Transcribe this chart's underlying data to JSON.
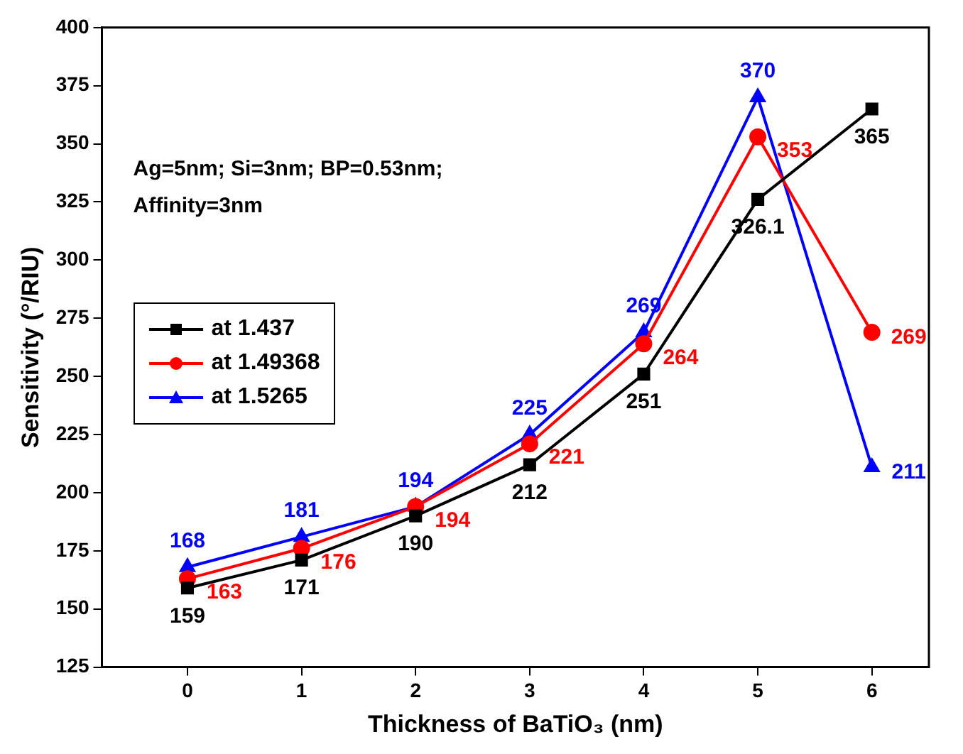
{
  "chart_data": {
    "type": "line",
    "xlabel": "Thickness of BaTiO₃ (nm)",
    "ylabel": "Sensitivity (°/RIU)",
    "x": [
      0,
      1,
      2,
      3,
      4,
      5,
      6
    ],
    "xlim": [
      -0.75,
      6.5
    ],
    "xticks": [
      0,
      1,
      2,
      3,
      4,
      5,
      6
    ],
    "ylim": [
      125,
      400
    ],
    "yticks": [
      125,
      150,
      175,
      200,
      225,
      250,
      275,
      300,
      325,
      350,
      375,
      400
    ],
    "grid": false,
    "legend": "left",
    "data_labels": true,
    "line_style": "solid",
    "annotations": [
      "Ag=5nm; Si=3nm; BP=0.53nm;",
      "Affinity=3nm"
    ],
    "series": [
      {
        "name": "at 1.437",
        "color": "#000000",
        "marker": "square",
        "values": [
          159,
          171,
          190,
          212,
          251,
          326.1,
          365
        ]
      },
      {
        "name": "at 1.49368",
        "color": "#ff0000",
        "marker": "circle",
        "values": [
          163,
          176,
          194,
          221,
          264,
          353,
          269
        ]
      },
      {
        "name": "at 1.5265",
        "color": "#0000ff",
        "marker": "triangle",
        "values": [
          168,
          181,
          194,
          225,
          269,
          370,
          211
        ]
      }
    ]
  }
}
